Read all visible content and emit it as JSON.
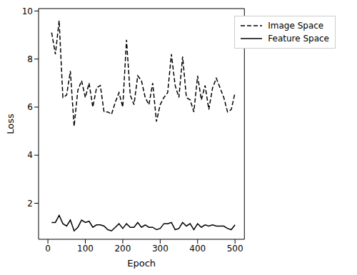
{
  "chart_data": {
    "type": "line",
    "x_label": "Epoch",
    "y_label": "Loss",
    "x": [
      10,
      20,
      30,
      40,
      50,
      60,
      70,
      80,
      90,
      100,
      110,
      120,
      130,
      140,
      150,
      160,
      170,
      180,
      190,
      200,
      210,
      220,
      230,
      240,
      250,
      260,
      270,
      280,
      290,
      300,
      310,
      320,
      330,
      340,
      350,
      360,
      370,
      380,
      390,
      400,
      410,
      420,
      430,
      440,
      450,
      460,
      470,
      480,
      490,
      500
    ],
    "series": [
      {
        "name": "Image Space",
        "color": "#000000",
        "line_style": "dashed",
        "values": [
          9.1,
          8.2,
          9.6,
          6.4,
          6.5,
          7.5,
          5.2,
          6.7,
          7.1,
          6.4,
          7.0,
          6.0,
          6.8,
          6.9,
          5.8,
          5.8,
          5.7,
          6.2,
          6.6,
          6.0,
          8.8,
          6.5,
          6.1,
          7.3,
          7.1,
          6.4,
          6.1,
          7.0,
          5.4,
          6.1,
          6.4,
          6.6,
          8.2,
          6.9,
          6.4,
          8.1,
          6.4,
          6.3,
          5.8,
          7.3,
          6.3,
          6.9,
          5.9,
          6.8,
          7.2,
          6.8,
          6.4,
          5.8,
          5.9,
          6.6
        ]
      },
      {
        "name": "Feature Space",
        "color": "#000000",
        "line_style": "solid",
        "values": [
          1.2,
          1.2,
          1.5,
          1.15,
          1.05,
          1.3,
          0.85,
          1.0,
          1.3,
          1.2,
          1.25,
          1.0,
          1.1,
          1.1,
          1.05,
          0.9,
          0.85,
          1.0,
          1.15,
          0.95,
          1.15,
          1.0,
          1.0,
          1.2,
          1.0,
          1.1,
          1.0,
          1.0,
          0.9,
          0.95,
          1.15,
          1.15,
          1.2,
          0.9,
          0.95,
          1.2,
          1.05,
          1.15,
          0.9,
          1.15,
          1.0,
          1.1,
          1.05,
          1.1,
          1.05,
          1.05,
          1.05,
          0.95,
          0.9,
          1.1
        ]
      }
    ],
    "xlim": [
      -25,
      525
    ],
    "xticks": [
      0,
      100,
      200,
      300,
      400,
      500
    ],
    "ylim": [
      0.5,
      10.1
    ],
    "yticks": [
      2,
      4,
      6,
      8,
      10
    ],
    "legend": "upper right",
    "grid": false
  }
}
